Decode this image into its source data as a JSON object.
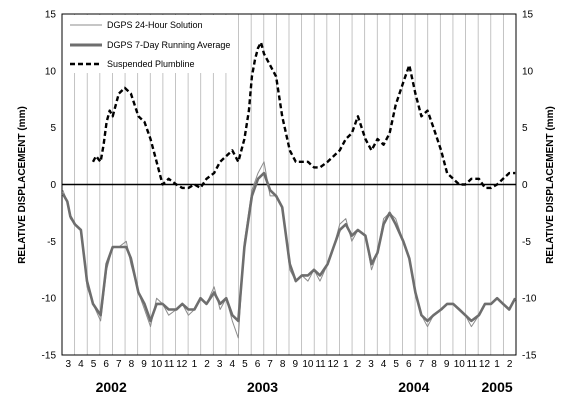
{
  "chart_data": {
    "type": "line",
    "title": "",
    "ylabel_left": "RELATIVE DISPLACEMENT (mm)",
    "ylabel_right": "RELATIVE DISPLACEMENT (mm)",
    "ylim": [
      -15,
      15
    ],
    "xlim": [
      2002.125,
      2005.125
    ],
    "y_ticks": [
      "15",
      "10",
      "5",
      "0",
      "-5",
      "-10",
      "-15"
    ],
    "y_tick_values": [
      15,
      10,
      5,
      0,
      -5,
      -10,
      -15
    ],
    "month_ticks": [
      "3",
      "4",
      "5",
      "6",
      "7",
      "8",
      "9",
      "10",
      "11",
      "12",
      "1",
      "2",
      "3",
      "4",
      "5",
      "6",
      "7",
      "8",
      "9",
      "10",
      "11",
      "12",
      "1",
      "2",
      "3",
      "4",
      "5",
      "6",
      "7",
      "8",
      "9",
      "10",
      "11",
      "12",
      "1",
      "2"
    ],
    "year_labels": [
      {
        "text": "2002",
        "x": 2002.45
      },
      {
        "text": "2003",
        "x": 2003.45
      },
      {
        "text": "2004",
        "x": 2004.45
      },
      {
        "text": "2005",
        "x": 2005.0
      }
    ],
    "grid": true,
    "legend_position": "top-left",
    "series": [
      {
        "name": "DGPS 24-Hour Solution",
        "style": "thin-solid",
        "color": "#8c8c8c",
        "x": [
          2002.13,
          2002.16,
          2002.18,
          2002.21,
          2002.25,
          2002.29,
          2002.33,
          2002.38,
          2002.42,
          2002.46,
          2002.5,
          2002.55,
          2002.58,
          2002.63,
          2002.67,
          2002.71,
          2002.75,
          2002.79,
          2002.83,
          2002.88,
          2002.92,
          2002.96,
          2003.0,
          2003.04,
          2003.08,
          2003.13,
          2003.17,
          2003.21,
          2003.25,
          2003.29,
          2003.33,
          2003.38,
          2003.42,
          2003.46,
          2003.5,
          2003.54,
          2003.58,
          2003.63,
          2003.67,
          2003.71,
          2003.75,
          2003.79,
          2003.83,
          2003.88,
          2003.92,
          2003.96,
          2004.0,
          2004.04,
          2004.08,
          2004.13,
          2004.17,
          2004.21,
          2004.25,
          2004.29,
          2004.33,
          2004.38,
          2004.42,
          2004.46,
          2004.5,
          2004.54,
          2004.58,
          2004.63,
          2004.67,
          2004.71,
          2004.75,
          2004.79,
          2004.83,
          2004.88,
          2004.92,
          2004.96,
          2005.0,
          2005.04,
          2005.08,
          2005.12
        ],
        "y": [
          -0.5,
          -1.5,
          -3.0,
          -3.5,
          -4.0,
          -9.0,
          -10.5,
          -12.0,
          -7.5,
          -5.5,
          -5.5,
          -5.0,
          -7.0,
          -9.5,
          -11.0,
          -12.5,
          -10.0,
          -10.5,
          -11.5,
          -11.0,
          -10.5,
          -11.5,
          -11.0,
          -10.0,
          -10.5,
          -9.0,
          -11.0,
          -10.0,
          -12.0,
          -13.5,
          -5.0,
          -0.5,
          1.0,
          2.0,
          -1.0,
          -1.0,
          -2.0,
          -7.5,
          -8.5,
          -8.0,
          -8.5,
          -7.5,
          -8.5,
          -7.0,
          -5.5,
          -3.5,
          -3.0,
          -5.0,
          -4.0,
          -4.5,
          -7.5,
          -6.0,
          -3.0,
          -2.5,
          -3.0,
          -5.0,
          -6.5,
          -9.5,
          -11.5,
          -12.5,
          -11.5,
          -11.0,
          -10.5,
          -10.5,
          -11.0,
          -11.5,
          -12.5,
          -11.5,
          -10.5,
          -10.5,
          -10.0,
          -10.5,
          -11.0,
          -10.0
        ]
      },
      {
        "name": "DGPS 7-Day Running Average",
        "style": "thick-solid",
        "color": "#6e6e6e",
        "x": [
          2002.13,
          2002.16,
          2002.18,
          2002.21,
          2002.25,
          2002.29,
          2002.33,
          2002.38,
          2002.42,
          2002.46,
          2002.5,
          2002.55,
          2002.58,
          2002.63,
          2002.67,
          2002.71,
          2002.75,
          2002.79,
          2002.83,
          2002.88,
          2002.92,
          2002.96,
          2003.0,
          2003.04,
          2003.08,
          2003.13,
          2003.17,
          2003.21,
          2003.25,
          2003.29,
          2003.33,
          2003.38,
          2003.42,
          2003.46,
          2003.5,
          2003.54,
          2003.58,
          2003.63,
          2003.67,
          2003.71,
          2003.75,
          2003.79,
          2003.83,
          2003.88,
          2003.92,
          2003.96,
          2004.0,
          2004.04,
          2004.08,
          2004.13,
          2004.17,
          2004.21,
          2004.25,
          2004.29,
          2004.33,
          2004.38,
          2004.42,
          2004.46,
          2004.5,
          2004.54,
          2004.58,
          2004.63,
          2004.67,
          2004.71,
          2004.75,
          2004.79,
          2004.83,
          2004.88,
          2004.92,
          2004.96,
          2005.0,
          2005.04,
          2005.08,
          2005.12
        ],
        "y": [
          -0.8,
          -1.5,
          -2.8,
          -3.5,
          -4.0,
          -8.5,
          -10.5,
          -11.5,
          -7.0,
          -5.5,
          -5.5,
          -5.5,
          -6.5,
          -9.5,
          -10.5,
          -12.0,
          -10.5,
          -10.5,
          -11.0,
          -11.0,
          -10.5,
          -11.0,
          -11.0,
          -10.0,
          -10.5,
          -9.5,
          -10.5,
          -10.0,
          -11.5,
          -12.0,
          -5.5,
          -1.0,
          0.5,
          1.0,
          -0.5,
          -1.0,
          -2.0,
          -7.0,
          -8.5,
          -8.0,
          -8.0,
          -7.5,
          -8.0,
          -7.0,
          -5.5,
          -4.0,
          -3.5,
          -4.5,
          -4.0,
          -4.5,
          -7.0,
          -6.0,
          -3.5,
          -2.5,
          -3.5,
          -5.0,
          -6.5,
          -9.5,
          -11.5,
          -12.0,
          -11.5,
          -11.0,
          -10.5,
          -10.5,
          -11.0,
          -11.5,
          -12.0,
          -11.5,
          -10.5,
          -10.5,
          -10.0,
          -10.5,
          -11.0,
          -10.0
        ]
      },
      {
        "name": "Suspended Plumbline",
        "style": "dashed",
        "color": "#000000",
        "x": [
          2002.33,
          2002.35,
          2002.38,
          2002.4,
          2002.42,
          2002.44,
          2002.46,
          2002.5,
          2002.54,
          2002.58,
          2002.63,
          2002.67,
          2002.71,
          2002.75,
          2002.79,
          2002.83,
          2002.88,
          2002.92,
          2002.96,
          2003.0,
          2003.04,
          2003.08,
          2003.13,
          2003.17,
          2003.21,
          2003.25,
          2003.29,
          2003.33,
          2003.36,
          2003.38,
          2003.4,
          2003.42,
          2003.44,
          2003.46,
          2003.5,
          2003.54,
          2003.58,
          2003.63,
          2003.67,
          2003.71,
          2003.75,
          2003.79,
          2003.83,
          2003.88,
          2003.92,
          2003.96,
          2004.0,
          2004.04,
          2004.08,
          2004.13,
          2004.17,
          2004.21,
          2004.25,
          2004.29,
          2004.33,
          2004.38,
          2004.42,
          2004.46,
          2004.5,
          2004.54,
          2004.58,
          2004.63,
          2004.67,
          2004.71,
          2004.75,
          2004.79,
          2004.83,
          2004.88,
          2004.92,
          2004.96,
          2005.0,
          2005.04,
          2005.08,
          2005.12
        ],
        "y": [
          2.0,
          2.5,
          2.0,
          3.5,
          5.5,
          6.5,
          6.0,
          8.0,
          8.5,
          8.0,
          6.0,
          5.5,
          4.0,
          2.0,
          0.0,
          0.5,
          0.0,
          -0.3,
          -0.3,
          0.0,
          -0.3,
          0.5,
          1.0,
          2.0,
          2.5,
          3.0,
          2.0,
          4.0,
          6.5,
          9.5,
          11.0,
          12.0,
          12.5,
          11.5,
          10.5,
          9.5,
          6.0,
          3.0,
          2.0,
          2.0,
          2.0,
          1.5,
          1.5,
          2.0,
          2.5,
          3.0,
          4.0,
          4.5,
          6.0,
          4.0,
          3.0,
          4.0,
          3.5,
          4.5,
          7.0,
          9.0,
          10.5,
          8.0,
          6.0,
          6.5,
          5.0,
          3.0,
          1.0,
          0.5,
          0.0,
          0.0,
          0.5,
          0.5,
          -0.3,
          -0.3,
          0.0,
          0.5,
          1.0,
          1.0
        ]
      }
    ]
  }
}
